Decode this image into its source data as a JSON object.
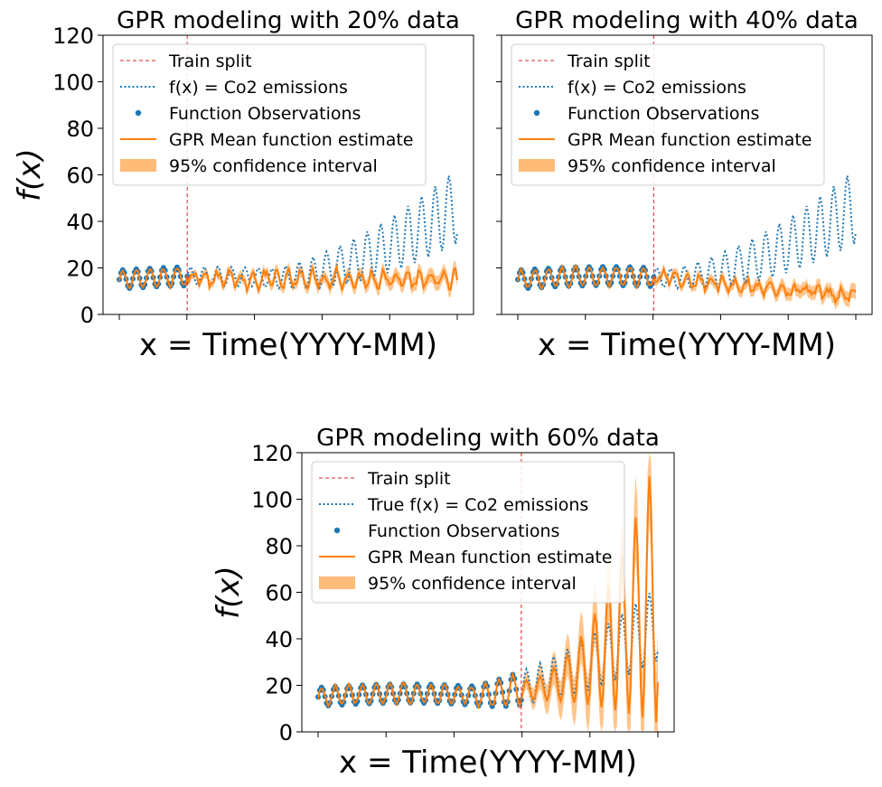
{
  "colors": {
    "true_fn": "#1f77b4",
    "observations": "#1f77b4",
    "gpr_mean": "#ff7f0e",
    "confidence": "#ffbb78",
    "split": "#d62728"
  },
  "chart_data": [
    {
      "type": "line",
      "title": "GPR modeling with 20% data",
      "xlabel": "x = Time(YYYY-MM)",
      "ylabel": "f(x)",
      "ylim": [
        0,
        120
      ],
      "yticks": [
        "0",
        "20",
        "40",
        "60",
        "80",
        "100",
        "120"
      ],
      "n_points": 200,
      "train_fraction": 0.2,
      "legend_position": "upper left",
      "legend": [
        "Train split",
        "f(x) = Co2 emissions",
        "Function Observations",
        "GPR Mean function estimate",
        "95% confidence interval"
      ],
      "series": [
        {
          "name": "f(x) = Co2 emissions",
          "summary": {
            "start_range": [
              10,
              22
            ],
            "end_range": [
              38,
              62
            ]
          }
        },
        {
          "name": "GPR Mean function estimate",
          "summary": {
            "start_range": [
              10,
              22
            ],
            "end_range": [
              12,
              20
            ]
          }
        }
      ]
    },
    {
      "type": "line",
      "title": "GPR modeling with 40% data",
      "xlabel": "x = Time(YYYY-MM)",
      "ylabel": "",
      "ylim": [
        0,
        120
      ],
      "yticks": [],
      "n_points": 200,
      "train_fraction": 0.4,
      "legend_position": "upper left",
      "legend": [
        "Train split",
        "f(x) = Co2 emissions",
        "Function Observations",
        "GPR Mean function estimate",
        "95% confidence interval"
      ],
      "series": [
        {
          "name": "f(x) = Co2 emissions",
          "summary": {
            "start_range": [
              10,
              22
            ],
            "end_range": [
              38,
              62
            ]
          }
        },
        {
          "name": "GPR Mean function estimate",
          "summary": {
            "start_range": [
              10,
              22
            ],
            "end_range": [
              5,
              10
            ]
          }
        }
      ]
    },
    {
      "type": "line",
      "title": "GPR modeling with 60% data",
      "xlabel": "x = Time(YYYY-MM)",
      "ylabel": "f(x)",
      "ylim": [
        0,
        120
      ],
      "yticks": [
        "0",
        "20",
        "40",
        "60",
        "80",
        "100",
        "120"
      ],
      "n_points": 200,
      "train_fraction": 0.6,
      "legend_position": "upper left",
      "legend": [
        "Train split",
        "True f(x) = Co2 emissions",
        "Function Observations",
        "GPR Mean function estimate",
        "95% confidence interval"
      ],
      "series": [
        {
          "name": "True f(x) = Co2 emissions",
          "summary": {
            "start_range": [
              10,
              22
            ],
            "end_range": [
              38,
              62
            ]
          }
        },
        {
          "name": "GPR Mean function estimate",
          "summary": {
            "start_range": [
              10,
              22
            ],
            "end_range": [
              0,
              125
            ]
          }
        }
      ]
    }
  ]
}
